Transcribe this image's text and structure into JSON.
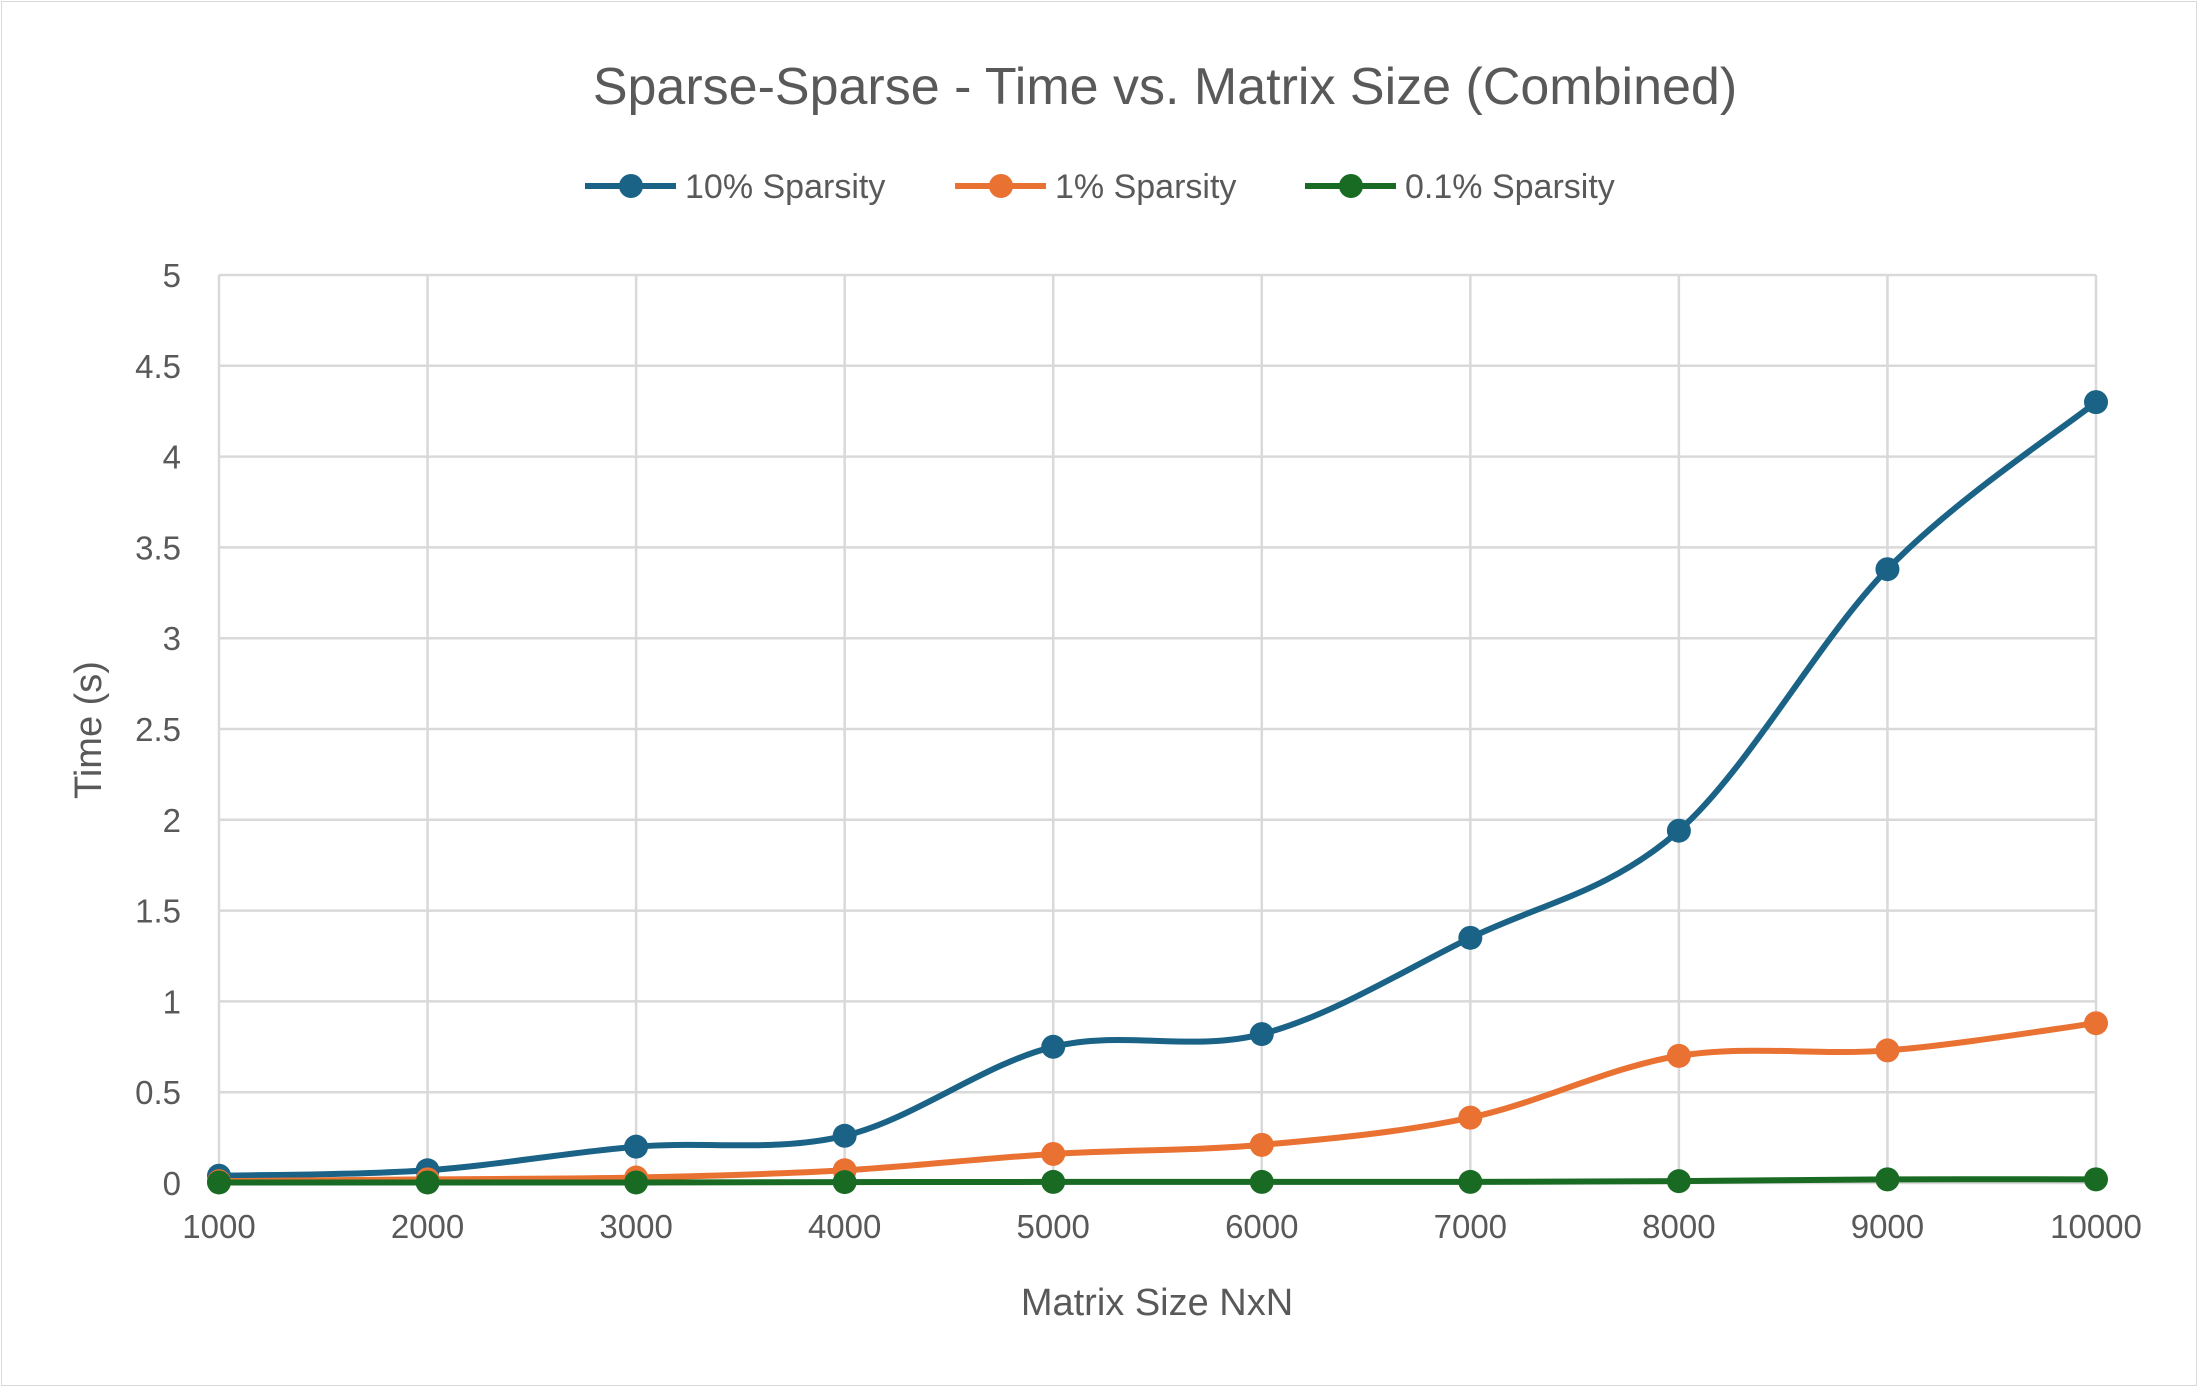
{
  "chart_data": {
    "type": "line",
    "title": "Sparse-Sparse - Time vs. Matrix Size (Combined)",
    "xlabel": "Matrix Size NxN",
    "ylabel": "Time (s)",
    "x": [
      1000,
      2000,
      3000,
      4000,
      5000,
      6000,
      7000,
      8000,
      9000,
      10000
    ],
    "ylim": [
      0,
      5
    ],
    "yticks": [
      0,
      0.5,
      1,
      1.5,
      2,
      2.5,
      3,
      3.5,
      4,
      4.5,
      5
    ],
    "grid": true,
    "smoothed": true,
    "legend_position": "top",
    "series": [
      {
        "name": "10% Sparsity",
        "color": "#1a6387",
        "values": [
          0.04,
          0.07,
          0.2,
          0.26,
          0.75,
          0.82,
          1.35,
          1.94,
          3.38,
          4.3
        ]
      },
      {
        "name": "1% Sparsity",
        "color": "#e97132",
        "values": [
          0.01,
          0.02,
          0.03,
          0.07,
          0.16,
          0.21,
          0.36,
          0.7,
          0.73,
          0.88
        ]
      },
      {
        "name": "0.1% Sparsity",
        "color": "#196b24",
        "values": [
          0.003,
          0.003,
          0.003,
          0.005,
          0.006,
          0.006,
          0.006,
          0.01,
          0.02,
          0.02
        ]
      }
    ]
  }
}
